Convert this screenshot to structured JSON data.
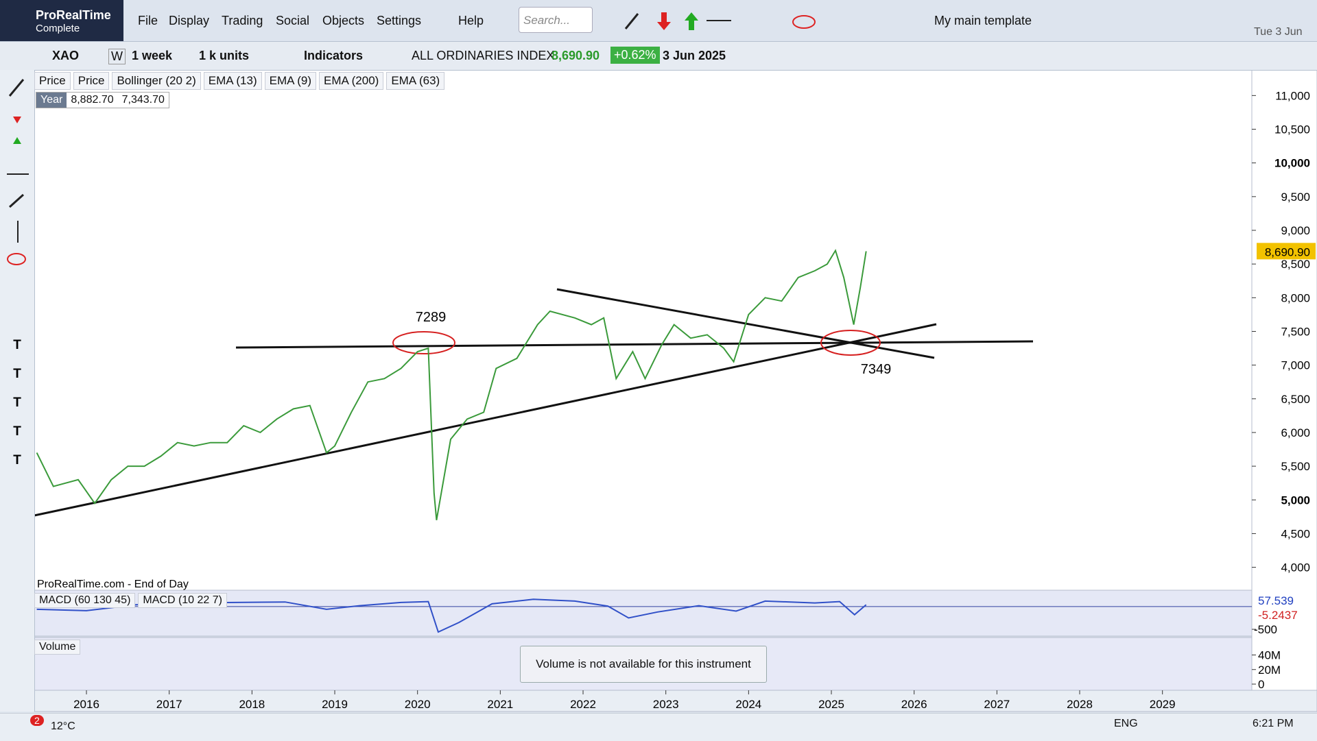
{
  "app": {
    "name": "ProRealTime",
    "edition": "Complete"
  },
  "menu": [
    "File",
    "Display",
    "Trading",
    "Social",
    "Objects",
    "Settings",
    "Help"
  ],
  "search_placeholder": "Search...",
  "template": "My main template",
  "date": "Tue 3 Jun",
  "toolbar": {
    "ticker": "XAO",
    "mode": "W",
    "period": "1 week",
    "units": "1 k units",
    "indicators": "Indicators",
    "instrument": "ALL ORDINARIES INDEX",
    "last": "8,690.90",
    "change": "+0.62%",
    "as_of": "3 Jun 2025"
  },
  "indicator_bar": [
    "Price",
    "Price",
    "Bollinger (20 2)",
    "EMA (13)",
    "EMA (9)",
    "EMA (200)",
    "EMA (63)"
  ],
  "range_box": {
    "label": "Year",
    "high": "8,882.70",
    "low": "7,343.70"
  },
  "source": "ProRealTime.com - End of Day",
  "chart_data": {
    "type": "line",
    "color": "#3a9a3a",
    "xlim": [
      2015.37,
      2030.08
    ],
    "xticks": [
      {
        "value": 2016,
        "label": "2016"
      },
      {
        "value": 2017,
        "label": "2017"
      },
      {
        "value": 2018,
        "label": "2018"
      },
      {
        "value": 2019,
        "label": "2019"
      },
      {
        "value": 2020,
        "label": "2020"
      },
      {
        "value": 2021,
        "label": "2021"
      },
      {
        "value": 2022,
        "label": "2022"
      },
      {
        "value": 2023,
        "label": "2023"
      },
      {
        "value": 2024,
        "label": "2024"
      },
      {
        "value": 2025,
        "label": "2025"
      },
      {
        "value": 2026,
        "label": "2026"
      },
      {
        "value": 2027,
        "label": "2027"
      },
      {
        "value": 2028,
        "label": "2028"
      },
      {
        "value": 2029,
        "label": "2029"
      }
    ],
    "ylim": [
      3660,
      11380
    ],
    "yticks": [
      {
        "value": 4000,
        "label": "4,000"
      },
      {
        "value": 4500,
        "label": "4,500"
      },
      {
        "value": 5000,
        "label": "5,000"
      },
      {
        "value": 5500,
        "label": "5,500"
      },
      {
        "value": 6000,
        "label": "6,000"
      },
      {
        "value": 6500,
        "label": "6,500"
      },
      {
        "value": 7000,
        "label": "7,000"
      },
      {
        "value": 7500,
        "label": "7,500"
      },
      {
        "value": 8000,
        "label": "8,000"
      },
      {
        "value": 8500,
        "label": "8,500"
      },
      {
        "value": 9000,
        "label": "9,000"
      },
      {
        "value": 9500,
        "label": "9,500"
      },
      {
        "value": 10000,
        "label": "10,000"
      },
      {
        "value": 10500,
        "label": "10,500"
      },
      {
        "value": 11000,
        "label": "11,000"
      }
    ],
    "bold_ticks": [
      5000,
      10000
    ],
    "x": [
      2015.4,
      2015.6,
      2015.9,
      2016.1,
      2016.3,
      2016.5,
      2016.7,
      2016.9,
      2017.1,
      2017.3,
      2017.5,
      2017.7,
      2017.9,
      2018.1,
      2018.3,
      2018.5,
      2018.7,
      2018.9,
      2019.0,
      2019.2,
      2019.4,
      2019.6,
      2019.8,
      2020.0,
      2020.13,
      2020.2,
      2020.23,
      2020.4,
      2020.6,
      2020.8,
      2020.95,
      2021.2,
      2021.45,
      2021.6,
      2021.9,
      2022.1,
      2022.25,
      2022.4,
      2022.6,
      2022.75,
      2022.95,
      2023.1,
      2023.3,
      2023.5,
      2023.7,
      2023.82,
      2024.0,
      2024.2,
      2024.4,
      2024.6,
      2024.8,
      2024.95,
      2025.05,
      2025.15,
      2025.27,
      2025.35,
      2025.42
    ],
    "values": [
      5700,
      5200,
      5300,
      4950,
      5300,
      5500,
      5500,
      5650,
      5850,
      5800,
      5850,
      5850,
      6100,
      6000,
      6200,
      6350,
      6400,
      5700,
      5800,
      6300,
      6750,
      6800,
      6950,
      7200,
      7250,
      5100,
      4700,
      5900,
      6200,
      6300,
      6950,
      7100,
      7600,
      7800,
      7700,
      7600,
      7700,
      6800,
      7200,
      6800,
      7300,
      7600,
      7400,
      7450,
      7250,
      7050,
      7750,
      8000,
      7950,
      8300,
      8400,
      8500,
      8700,
      8300,
      7600,
      8150,
      8690
    ],
    "last_label": 8690.9,
    "annotations": [
      "7289",
      "7349"
    ],
    "macd": {
      "labels": [
        "MACD (60 130 45)",
        "MACD (10 22 7)"
      ],
      "color": "#3050c8",
      "ylim": [
        -650,
        360
      ],
      "yticks": [
        -500
      ],
      "value_labels": [
        "57.539",
        "-5.2437"
      ],
      "x": [
        2015.4,
        2016.0,
        2016.6,
        2017.2,
        2017.8,
        2018.4,
        2018.9,
        2019.3,
        2019.8,
        2020.13,
        2020.25,
        2020.5,
        2020.9,
        2021.4,
        2021.9,
        2022.3,
        2022.55,
        2022.9,
        2023.4,
        2023.85,
        2024.2,
        2024.8,
        2025.1,
        2025.28,
        2025.42
      ],
      "values": [
        -60,
        -90,
        40,
        80,
        90,
        100,
        -60,
        20,
        90,
        110,
        -560,
        -350,
        60,
        160,
        120,
        10,
        -250,
        -120,
        20,
        -100,
        120,
        80,
        110,
        -180,
        40
      ]
    },
    "volume": {
      "label": "Volume",
      "message": "Volume is not available for this instrument",
      "ylim": [
        0,
        64000000
      ],
      "yticks": [
        {
          "value": 40000000,
          "label": "40M"
        },
        {
          "value": 20000000,
          "label": "20M"
        },
        0
      ]
    }
  },
  "taskbar": {
    "badge": "2",
    "weather": "12°C",
    "lang": "ENG",
    "time": "6:21 PM"
  }
}
